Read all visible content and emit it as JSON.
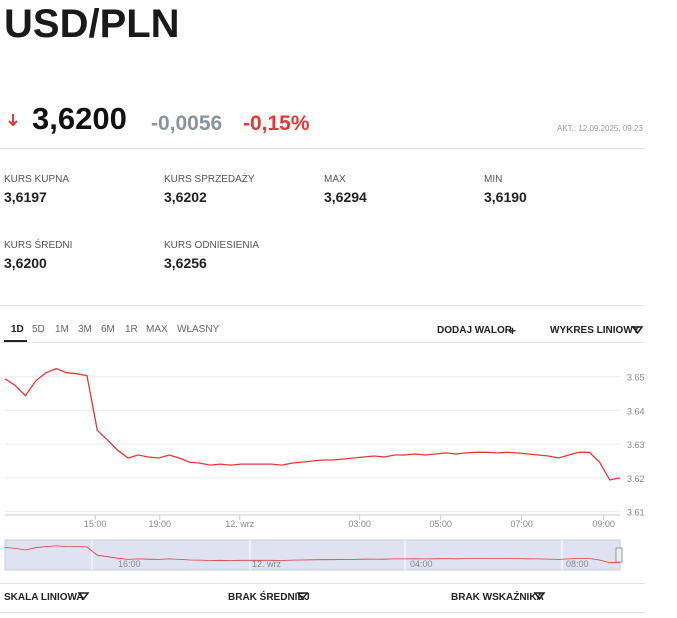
{
  "header": {
    "title": "USD/PLN"
  },
  "quote": {
    "price": "3,6200",
    "change": "-0,0056",
    "change_percent": "-0,15%",
    "updated": "AKT.: 12.09.2025, 09:23"
  },
  "stats": [
    {
      "label": "KURS KUPNA",
      "value": "3,6197"
    },
    {
      "label": "KURS SPRZEDAŻY",
      "value": "3,6202"
    },
    {
      "label": "MAX",
      "value": "3,6294"
    },
    {
      "label": "MIN",
      "value": "3,6190"
    },
    {
      "label": "KURS ŚREDNI",
      "value": "3,6200"
    },
    {
      "label": "KURS ODNIESIENIA",
      "value": "3,6256"
    }
  ],
  "tabs": [
    "1D",
    "5D",
    "1M",
    "3M",
    "6M",
    "1R",
    "MAX",
    "WŁASNY"
  ],
  "actions": {
    "add": "DODAJ WALOR",
    "add_icon": "+",
    "chart_type": "WYKRES LINIOWY"
  },
  "chart_data": {
    "type": "line",
    "color": "#e0393b",
    "grid": true,
    "values": [
      3.6494,
      3.6474,
      3.6444,
      3.6488,
      3.6512,
      3.6524,
      3.6512,
      3.6509,
      3.6503,
      3.6341,
      3.6312,
      3.6282,
      3.6259,
      3.6268,
      3.6262,
      3.6259,
      3.6268,
      3.6259,
      3.6247,
      3.6244,
      3.6238,
      3.6241,
      3.6238,
      3.6241,
      3.6241,
      3.6241,
      3.6241,
      3.6238,
      3.6244,
      3.6247,
      3.625,
      3.6253,
      3.6253,
      3.6256,
      3.6259,
      3.6262,
      3.6265,
      3.6262,
      3.6268,
      3.6268,
      3.6271,
      3.6268,
      3.6271,
      3.6274,
      3.6271,
      3.6274,
      3.6276,
      3.6276,
      3.6274,
      3.6276,
      3.6274,
      3.6271,
      3.6268,
      3.6265,
      3.6259,
      3.6268,
      3.6276,
      3.6276,
      3.6247,
      3.6194,
      3.62
    ],
    "xlim": [
      0,
      60
    ],
    "xticks": [
      {
        "value": 8.8,
        "label": "15:00"
      },
      {
        "value": 15.1,
        "label": "19:00"
      },
      {
        "value": 22.9,
        "label": "12. wrz"
      },
      {
        "value": 34.6,
        "label": "03:00"
      },
      {
        "value": 42.5,
        "label": "05:00"
      },
      {
        "value": 50.4,
        "label": "07:00"
      },
      {
        "value": 58.4,
        "label": "09:00"
      }
    ],
    "ylim": [
      3.609,
      3.66
    ],
    "yticks": [
      3.61,
      3.62,
      3.63,
      3.64,
      3.65
    ]
  },
  "navigator": {
    "labels": [
      "16:00",
      "12. wrz",
      "04:00",
      "08:00"
    ]
  },
  "footer": [
    "SKALA LINIOWA",
    "BRAK ŚREDNIEJ",
    "BRAK WSKAŹNIKA"
  ]
}
